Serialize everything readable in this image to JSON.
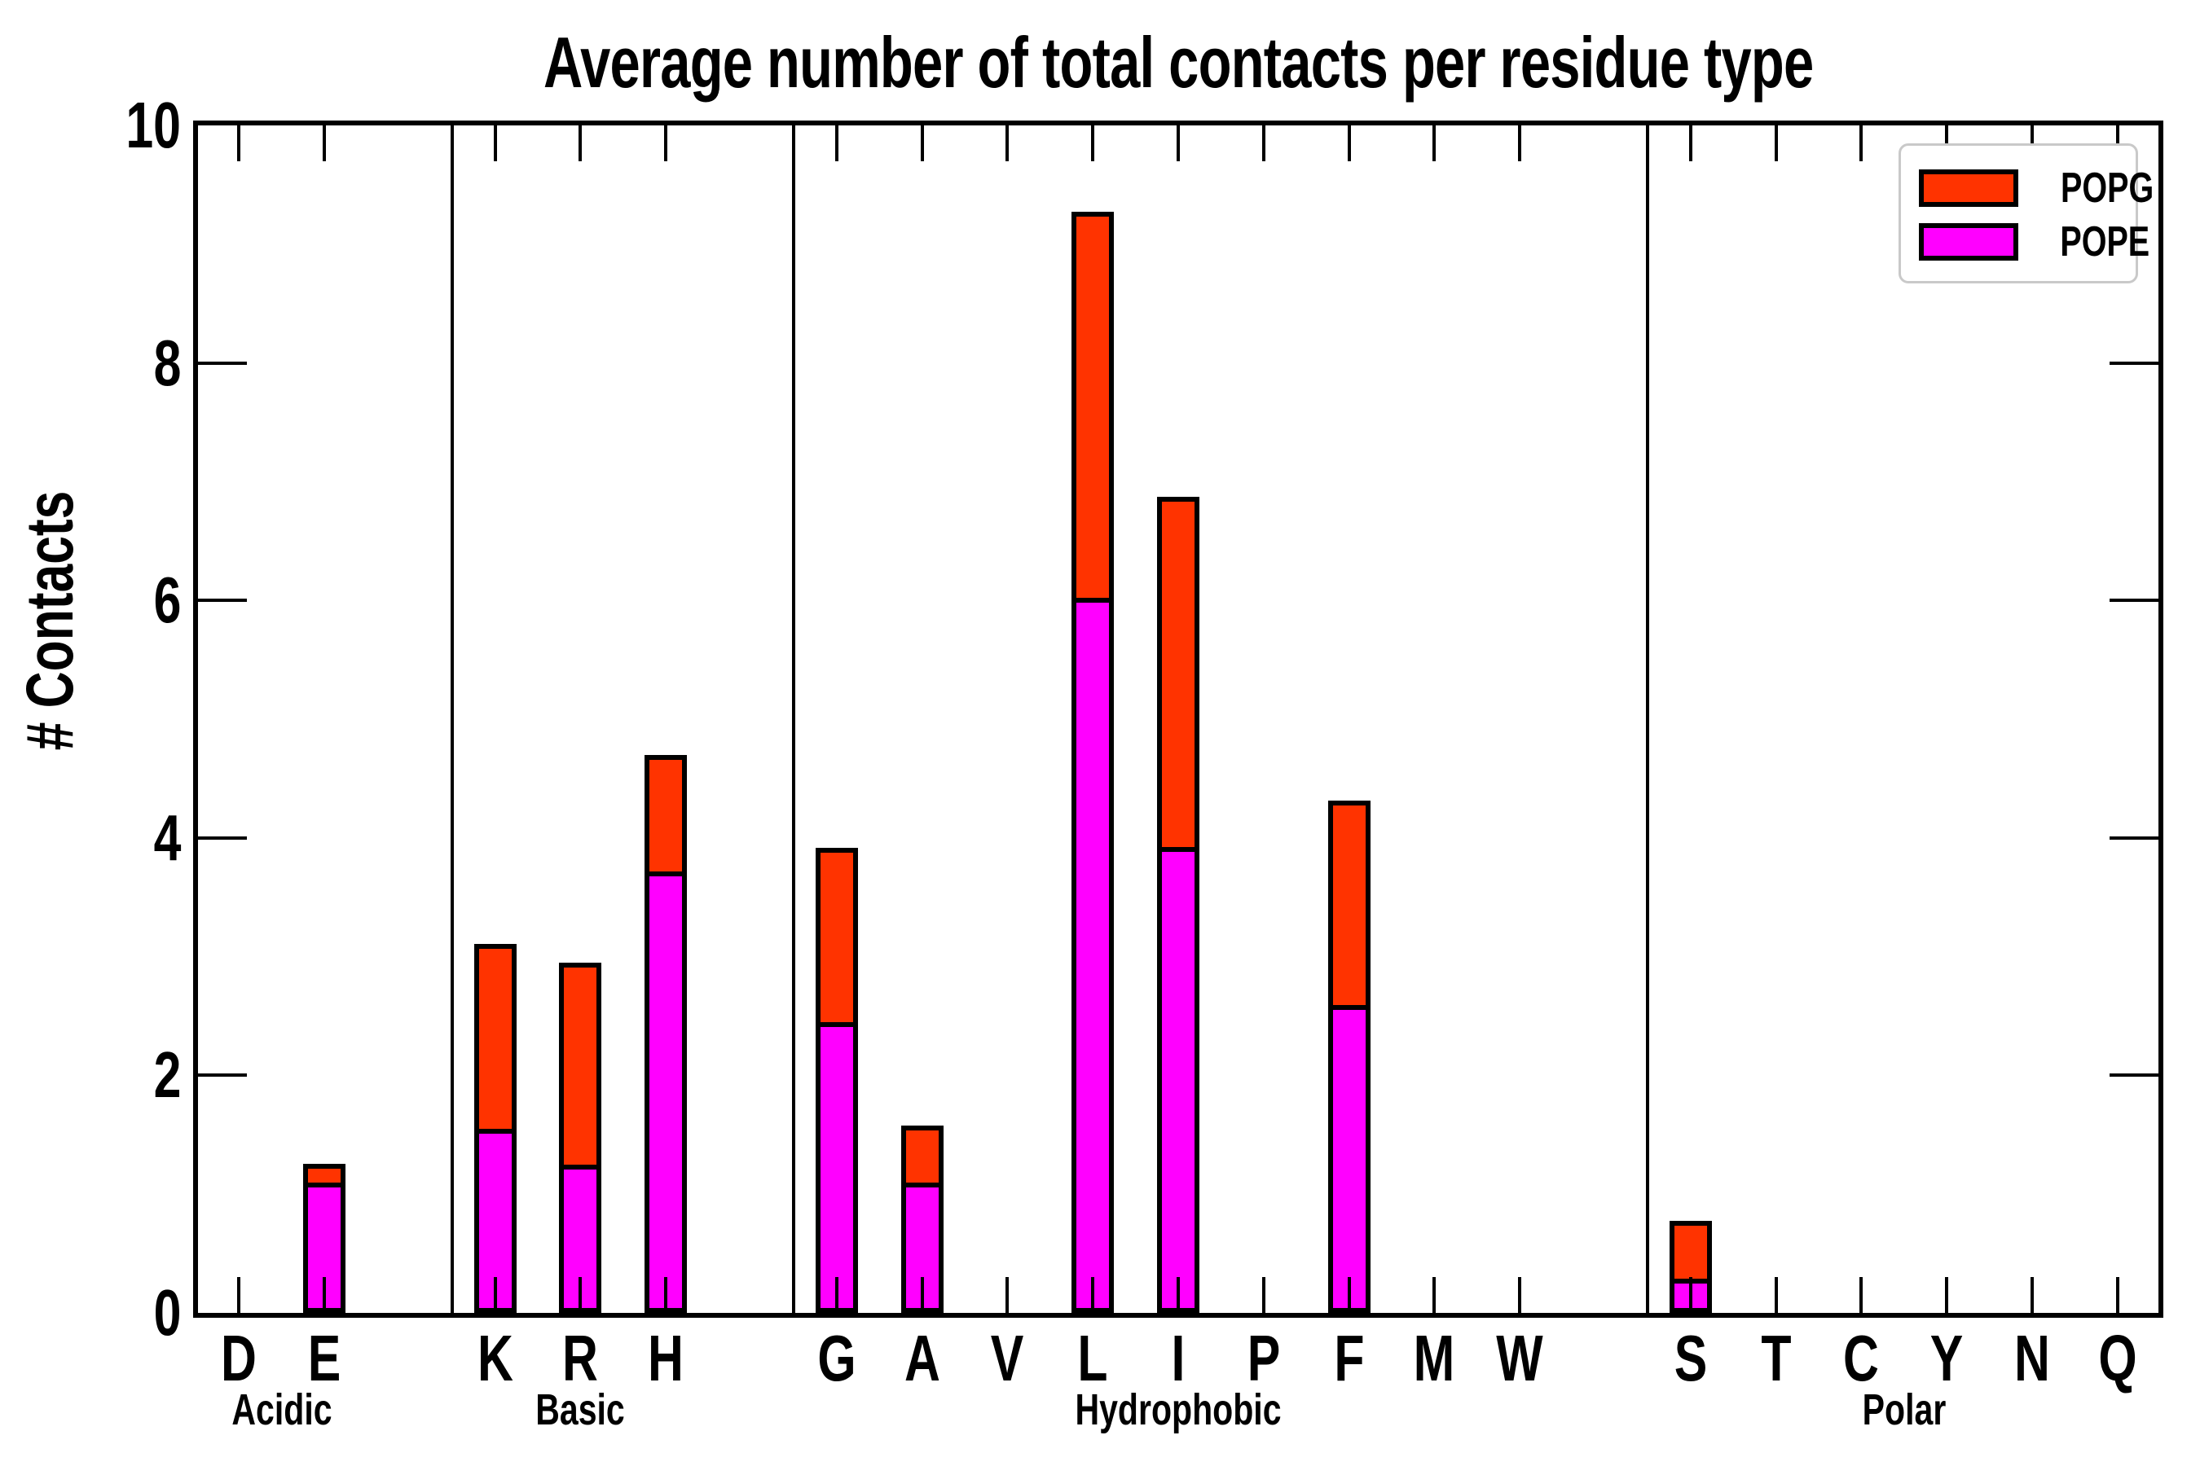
{
  "title": "Average number of total contacts per residue type",
  "ylabel": "# Contacts",
  "legend": {
    "entries": [
      {
        "label": "POPG",
        "color": "#ff3300"
      },
      {
        "label": "POPE",
        "color": "#ff00ff"
      }
    ]
  },
  "colors": {
    "pope": "#ff00ff",
    "popg": "#ff3300",
    "axis": "#000000",
    "legend_border": "#c9c9c9"
  },
  "chart_data": {
    "type": "bar",
    "stacked": true,
    "title": "Average number of total contacts per residue type",
    "xlabel": "",
    "ylabel": "# Contacts",
    "ylim": [
      0,
      10
    ],
    "yticks": [
      0,
      2,
      4,
      6,
      8,
      10
    ],
    "grid": false,
    "legend_position": "upper right",
    "series_order_bottom_to_top": [
      "POPE",
      "POPG"
    ],
    "groups": [
      {
        "label": "Acidic",
        "residues": [
          {
            "letter": "D",
            "pope": 0,
            "popg": 0
          },
          {
            "letter": "E",
            "pope": 1.1,
            "popg": 0.16
          }
        ]
      },
      {
        "label": "Basic",
        "residues": [
          {
            "letter": "K",
            "pope": 1.55,
            "popg": 1.56
          },
          {
            "letter": "R",
            "pope": 1.25,
            "popg": 1.7
          },
          {
            "letter": "H",
            "pope": 3.72,
            "popg": 0.98
          }
        ]
      },
      {
        "label": "Hydrophobic",
        "residues": [
          {
            "letter": "G",
            "pope": 2.45,
            "popg": 1.47
          },
          {
            "letter": "A",
            "pope": 1.1,
            "popg": 0.48
          },
          {
            "letter": "V",
            "pope": 0,
            "popg": 0
          },
          {
            "letter": "L",
            "pope": 6.02,
            "popg": 3.25
          },
          {
            "letter": "I",
            "pope": 3.92,
            "popg": 2.95
          },
          {
            "letter": "P",
            "pope": 0,
            "popg": 0
          },
          {
            "letter": "F",
            "pope": 2.59,
            "popg": 1.72
          },
          {
            "letter": "M",
            "pope": 0,
            "popg": 0
          },
          {
            "letter": "W",
            "pope": 0,
            "popg": 0
          }
        ]
      },
      {
        "label": "Polar",
        "residues": [
          {
            "letter": "S",
            "pope": 0.29,
            "popg": 0.49
          },
          {
            "letter": "T",
            "pope": 0,
            "popg": 0
          },
          {
            "letter": "C",
            "pope": 0,
            "popg": 0
          },
          {
            "letter": "Y",
            "pope": 0,
            "popg": 0
          },
          {
            "letter": "N",
            "pope": 0,
            "popg": 0
          },
          {
            "letter": "Q",
            "pope": 0,
            "popg": 0
          }
        ]
      }
    ]
  }
}
